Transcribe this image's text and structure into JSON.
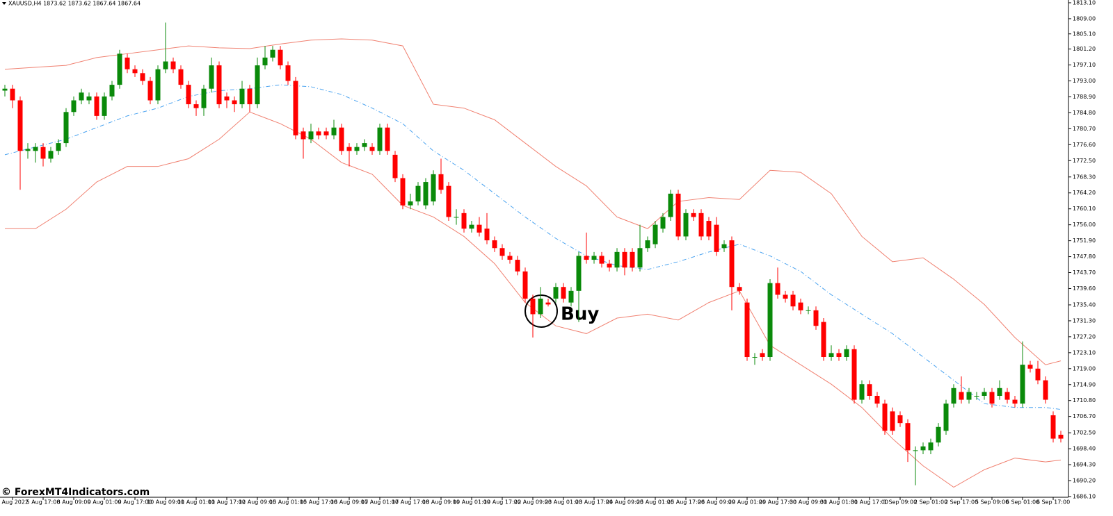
{
  "chart_data": {
    "type": "candlestick",
    "title": "XAUUSD,H4  1873.62 1873.62 1867.64 1867.64",
    "watermark": "© ForexMT4Indicators.com",
    "annotation": "Buy",
    "up_color": "#0a8a0a",
    "down_color": "#ff0000",
    "categories": [
      null,
      "5 Aug 2022",
      null,
      null,
      null,
      "5 Aug 17:00",
      null,
      null,
      null,
      "8 Aug 09:00",
      null,
      null,
      null,
      "9 Aug 01:00",
      null,
      null,
      null,
      "9 Aug 17:00",
      null,
      null,
      null,
      "10 Aug 09:00",
      null,
      null,
      null,
      "11 Aug 01:00",
      null,
      null,
      null,
      "11 Aug 17:00",
      null,
      null,
      null,
      "12 Aug 09:00",
      null,
      null,
      null,
      "15 Aug 01:00",
      null,
      null,
      null,
      "15 Aug 17:00",
      null,
      null,
      null,
      "16 Aug 09:00",
      null,
      null,
      null,
      "17 Aug 01:00",
      null,
      null,
      null,
      "17 Aug 17:00",
      null,
      null,
      null,
      "18 Aug 09:00",
      null,
      null,
      null,
      "19 Aug 01:00",
      null,
      null,
      null,
      "19 Aug 17:00",
      null,
      null,
      null,
      "22 Aug 09:00",
      null,
      null,
      null,
      "23 Aug 01:00",
      null,
      null,
      null,
      "23 Aug 17:00",
      null,
      null,
      null,
      "24 Aug 09:00",
      null,
      null,
      null,
      "25 Aug 01:00",
      null,
      null,
      null,
      "25 Aug 17:00",
      null,
      null,
      null,
      "26 Aug 09:00",
      null,
      null,
      null,
      "29 Aug 01:00",
      null,
      null,
      null,
      "29 Aug 17:00",
      null,
      null,
      null,
      "30 Aug 09:00",
      null,
      null,
      null,
      "31 Aug 01:00",
      null,
      null,
      null,
      "31 Aug 17:00",
      null,
      null,
      null,
      "1 Sep 09:00",
      null,
      null,
      null,
      "2 Sep 01:00",
      null,
      null,
      null,
      "2 Sep 17:00",
      null,
      null,
      null,
      "5 Sep 09:00",
      null,
      null,
      null,
      "6 Sep 01:00",
      null,
      null,
      null,
      "6 Sep 17:00",
      null
    ],
    "open": [
      1790.5,
      1791,
      1788,
      1775,
      1775,
      1776,
      1773,
      1775,
      1777,
      1785,
      1788,
      1788,
      1789,
      1784,
      1789,
      1792,
      1799,
      1796,
      1795,
      1793,
      1788,
      1796,
      1798,
      1796,
      1792,
      1787,
      1786,
      1791,
      1797,
      1789,
      1788,
      1787,
      1791,
      1787,
      1797,
      1799,
      1801,
      1797,
      1793,
      1780,
      1778,
      1780,
      1780,
      1779,
      1781,
      1776,
      1775,
      1776,
      1776,
      1775,
      1781,
      1774,
      1768,
      1761,
      1762,
      1761,
      1762,
      1769,
      1766,
      1758,
      1759,
      1755,
      1756,
      1755,
      1752,
      1750,
      1748,
      1747,
      1744,
      1737,
      1733,
      1736,
      1737,
      1740,
      1736,
      1739,
      1748,
      1747,
      1748,
      1746,
      1745,
      1749,
      1749,
      1745,
      1750,
      1751,
      1755,
      1758,
      1764,
      1753,
      1759,
      1759,
      1757,
      1756,
      1750,
      1752,
      1740,
      1736,
      1722,
      1723,
      1722,
      1741,
      1738,
      1738,
      1736,
      1734,
      1734,
      1731,
      1722,
      1723,
      1722,
      1724,
      1711,
      1715,
      1712,
      1710,
      1708,
      1707,
      1705,
      1698,
      1698,
      1698,
      1700,
      1703,
      1710,
      1713,
      1711,
      1712,
      1712,
      1713,
      1712,
      1713,
      1711,
      1710,
      1720,
      1719,
      1716,
      1707,
      1702
    ],
    "high": [
      1792,
      1792,
      1789,
      1777,
      1777,
      1777,
      1776,
      1778,
      1786,
      1789,
      1791,
      1790,
      1790,
      1790,
      1793,
      1801,
      1800,
      1797,
      1796,
      1794,
      1797,
      1808,
      1799,
      1797,
      1793,
      1788,
      1792,
      1799,
      1798,
      1790,
      1789,
      1793,
      1792,
      1799,
      1802,
      1802,
      1802,
      1798,
      1794,
      1781,
      1782,
      1781,
      1781,
      1783,
      1782,
      1777,
      1777,
      1778,
      1777,
      1782,
      1782,
      1775,
      1769,
      1764,
      1767,
      1768,
      1770,
      1773,
      1767,
      1760,
      1760,
      1757,
      1758,
      1759,
      1753,
      1751,
      1749,
      1748,
      1745,
      1738,
      1740,
      1737,
      1741,
      1741,
      1740,
      1749,
      1754,
      1749,
      1749,
      1747,
      1750,
      1750,
      1750,
      1756,
      1753,
      1757,
      1759,
      1765,
      1765,
      1760,
      1760,
      1760,
      1758,
      1758,
      1752,
      1753,
      1741,
      1737,
      1723,
      1724,
      1742,
      1745,
      1739,
      1739,
      1737,
      1735,
      1735,
      1732,
      1725,
      1724,
      1725,
      1725,
      1716,
      1716,
      1713,
      1711,
      1709,
      1708,
      1706,
      1699,
      1700,
      1701,
      1705,
      1711,
      1715,
      1717,
      1714,
      1713,
      1714,
      1714,
      1716,
      1714,
      1712,
      1726,
      1721,
      1721,
      1717,
      1708,
      1703
    ],
    "low": [
      1789,
      1786,
      1765,
      1773,
      1772,
      1771,
      1772,
      1774,
      1776,
      1784,
      1787,
      1787,
      1783,
      1783,
      1788,
      1791,
      1795,
      1794,
      1792,
      1787,
      1787,
      1795,
      1795,
      1791,
      1786,
      1784,
      1784,
      1790,
      1786,
      1786,
      1785,
      1786,
      1785,
      1786,
      1796,
      1798,
      1796,
      1792,
      1778,
      1773,
      1777,
      1778,
      1778,
      1778,
      1774,
      1771,
      1774,
      1775,
      1774,
      1774,
      1774,
      1767,
      1760,
      1760,
      1761,
      1760,
      1761,
      1764,
      1757,
      1756,
      1754,
      1754,
      1753,
      1751,
      1749,
      1747,
      1746,
      1743,
      1736,
      1727,
      1732,
      1735,
      1736,
      1736,
      1735,
      1731,
      1746,
      1746,
      1745,
      1744,
      1744,
      1743,
      1744,
      1744,
      1749,
      1750,
      1754,
      1757,
      1752,
      1752,
      1757,
      1752,
      1752,
      1748,
      1749,
      1734,
      1738,
      1721,
      1720,
      1721,
      1721,
      1737,
      1736,
      1734,
      1733,
      1733,
      1729,
      1721,
      1721,
      1721,
      1721,
      1710,
      1710,
      1711,
      1709,
      1702,
      1702,
      1704,
      1695,
      1689,
      1697,
      1697,
      1699,
      1702,
      1709,
      1710,
      1710,
      1711,
      1711,
      1709,
      1711,
      1710,
      1709,
      1709,
      1718,
      1715,
      1710,
      1700,
      1700
    ],
    "close": [
      1791,
      1788,
      1775,
      1775.5,
      1776,
      1773,
      1775,
      1777,
      1785,
      1788,
      1790,
      1789,
      1784,
      1789,
      1792,
      1800,
      1796,
      1795,
      1793,
      1788,
      1796,
      1798,
      1796,
      1792,
      1787,
      1786,
      1791,
      1797,
      1787,
      1788,
      1787,
      1791,
      1787,
      1797,
      1799,
      1801,
      1797,
      1793,
      1779,
      1778,
      1780,
      1779,
      1779,
      1781,
      1775,
      1775,
      1776,
      1777,
      1775,
      1781,
      1775,
      1768,
      1761,
      1762,
      1766,
      1767,
      1769,
      1765,
      1758,
      1758,
      1755,
      1756,
      1754,
      1752,
      1750,
      1748,
      1747,
      1744,
      1737,
      1733,
      1737,
      1735.5,
      1740,
      1737,
      1739,
      1748,
      1747,
      1748,
      1746,
      1745,
      1749,
      1745,
      1745,
      1750,
      1752,
      1756,
      1758,
      1764,
      1753,
      1759,
      1758,
      1753,
      1753,
      1749,
      1751,
      1740,
      1739,
      1722,
      1722,
      1722,
      1741,
      1738,
      1737,
      1735,
      1734,
      1734,
      1730,
      1722,
      1723,
      1722,
      1724,
      1711,
      1715,
      1712,
      1710,
      1703,
      1703,
      1705,
      1698,
      1698,
      1699,
      1700,
      1704,
      1710,
      1714,
      1711,
      1713,
      1712,
      1713,
      1710,
      1714,
      1711,
      1710,
      1720,
      1719,
      1716,
      1711,
      1701,
      1701
    ],
    "bands": [
      {
        "color": "#f08070",
        "style": "solid",
        "x": [
          0,
          4,
          8,
          12,
          16,
          20,
          24,
          28,
          32,
          36,
          40,
          44,
          48,
          52,
          56,
          60,
          64,
          68,
          72,
          76,
          80,
          84,
          88,
          92,
          96,
          100,
          104,
          108,
          112,
          116,
          120,
          124,
          128,
          132,
          136,
          138
        ],
        "values": [
          1796,
          1796.5,
          1797,
          1799,
          1800,
          1801,
          1802,
          1801.5,
          1801.3,
          1802.5,
          1803.5,
          1803.8,
          1803.5,
          1802,
          1787,
          1786,
          1783,
          1777,
          1771,
          1766,
          1758,
          1755,
          1762,
          1763,
          1762.5,
          1770,
          1769.5,
          1764,
          1753,
          1746.5,
          1747.5,
          1742,
          1735.5,
          1727,
          1720,
          1721
        ]
      },
      {
        "color": "#4aa3f0",
        "style": "dashdot",
        "x": [
          0,
          4,
          8,
          12,
          16,
          20,
          24,
          28,
          32,
          36,
          40,
          44,
          48,
          52,
          56,
          60,
          64,
          68,
          72,
          76,
          80,
          84,
          88,
          92,
          96,
          100,
          104,
          108,
          112,
          116,
          120,
          124,
          128,
          132,
          136,
          138
        ],
        "values": [
          1774,
          1776,
          1778,
          1781,
          1784,
          1786,
          1789,
          1790.5,
          1791,
          1792,
          1791.5,
          1789.5,
          1786,
          1782,
          1775,
          1770,
          1764,
          1758,
          1752.5,
          1748,
          1745.5,
          1744.5,
          1746.5,
          1749,
          1751,
          1748,
          1744,
          1738,
          1733,
          1728,
          1722,
          1716,
          1710,
          1709,
          1709,
          1708.5
        ]
      },
      {
        "color": "#f08070",
        "style": "solid",
        "x": [
          0,
          4,
          8,
          12,
          16,
          20,
          24,
          28,
          32,
          36,
          40,
          44,
          48,
          52,
          56,
          60,
          64,
          68,
          72,
          76,
          80,
          84,
          88,
          92,
          96,
          100,
          104,
          108,
          112,
          116,
          120,
          124,
          128,
          132,
          136,
          138
        ],
        "values": [
          1755,
          1755,
          1760,
          1767,
          1771,
          1771,
          1773,
          1778,
          1785,
          1782,
          1778,
          1772,
          1769,
          1761,
          1758,
          1753,
          1746,
          1736,
          1730,
          1728,
          1732,
          1733,
          1731.5,
          1736,
          1739,
          1725,
          1720,
          1715,
          1709,
          1701,
          1694,
          1688.5,
          1693,
          1696,
          1695,
          1695.5
        ]
      }
    ],
    "ylim": [
      1685.92,
      1813.81
    ],
    "yticks": [
      {
        "value": 1813.1,
        "label": "1813.10"
      },
      {
        "value": 1809.0,
        "label": "1809.00"
      },
      {
        "value": 1805.1,
        "label": "1805.10"
      },
      {
        "value": 1801.2,
        "label": "1801.20"
      },
      {
        "value": 1797.1,
        "label": "1797.10"
      },
      {
        "value": 1793.0,
        "label": "1793.00"
      },
      {
        "value": 1788.9,
        "label": "1788.90"
      },
      {
        "value": 1784.8,
        "label": "1784.80"
      },
      {
        "value": 1780.7,
        "label": "1780.70"
      },
      {
        "value": 1776.6,
        "label": "1776.60"
      },
      {
        "value": 1772.5,
        "label": "1772.50"
      },
      {
        "value": 1768.3,
        "label": "1768.30"
      },
      {
        "value": 1764.2,
        "label": "1764.20"
      },
      {
        "value": 1760.1,
        "label": "1760.10"
      },
      {
        "value": 1756.0,
        "label": "1756.00"
      },
      {
        "value": 1751.9,
        "label": "1751.90"
      },
      {
        "value": 1747.8,
        "label": "1747.80"
      },
      {
        "value": 1743.7,
        "label": "1743.70"
      },
      {
        "value": 1739.6,
        "label": "1739.60"
      },
      {
        "value": 1735.4,
        "label": "1735.40"
      },
      {
        "value": 1731.3,
        "label": "1731.30"
      },
      {
        "value": 1727.2,
        "label": "1727.20"
      },
      {
        "value": 1723.1,
        "label": "1723.10"
      },
      {
        "value": 1719.0,
        "label": "1719.00"
      },
      {
        "value": 1714.9,
        "label": "1714.90"
      },
      {
        "value": 1710.8,
        "label": "1710.80"
      },
      {
        "value": 1706.7,
        "label": "1706.70"
      },
      {
        "value": 1702.5,
        "label": "1702.50"
      },
      {
        "value": 1698.4,
        "label": "1698.40"
      },
      {
        "value": 1694.3,
        "label": "1694.30"
      },
      {
        "value": 1690.2,
        "label": "1690.20"
      },
      {
        "value": 1686.1,
        "label": "1686.10"
      }
    ]
  }
}
